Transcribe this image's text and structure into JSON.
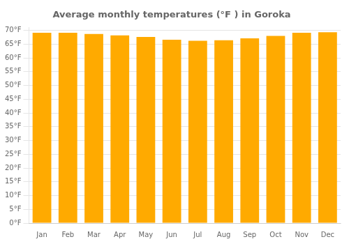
{
  "chart_data": {
    "type": "bar",
    "title": "Average monthly temperatures (°F ) in Goroka",
    "categories": [
      "Jan",
      "Feb",
      "Mar",
      "Apr",
      "May",
      "Jun",
      "Jul",
      "Aug",
      "Sep",
      "Oct",
      "Nov",
      "Dec"
    ],
    "values": [
      69.1,
      69.1,
      68.7,
      68.2,
      67.6,
      66.6,
      66.2,
      66.4,
      67.1,
      68.0,
      69.1,
      69.3
    ],
    "color": "#FFAA00",
    "ylim": [
      0,
      71
    ],
    "yticks": [
      {
        "value": 0,
        "label": "0°F"
      },
      {
        "value": 5,
        "label": "5°F"
      },
      {
        "value": 10,
        "label": "10°F"
      },
      {
        "value": 15,
        "label": "15°F"
      },
      {
        "value": 20,
        "label": "20°F"
      },
      {
        "value": 25,
        "label": "25°F"
      },
      {
        "value": 30,
        "label": "30°F"
      },
      {
        "value": 35,
        "label": "35°F"
      },
      {
        "value": 40,
        "label": "40°F"
      },
      {
        "value": 45,
        "label": "45°F"
      },
      {
        "value": 50,
        "label": "50°F"
      },
      {
        "value": 55,
        "label": "55°F"
      },
      {
        "value": 60,
        "label": "60°F"
      },
      {
        "value": 65,
        "label": "65°F"
      },
      {
        "value": 70,
        "label": "70°F"
      }
    ],
    "grid": true
  }
}
